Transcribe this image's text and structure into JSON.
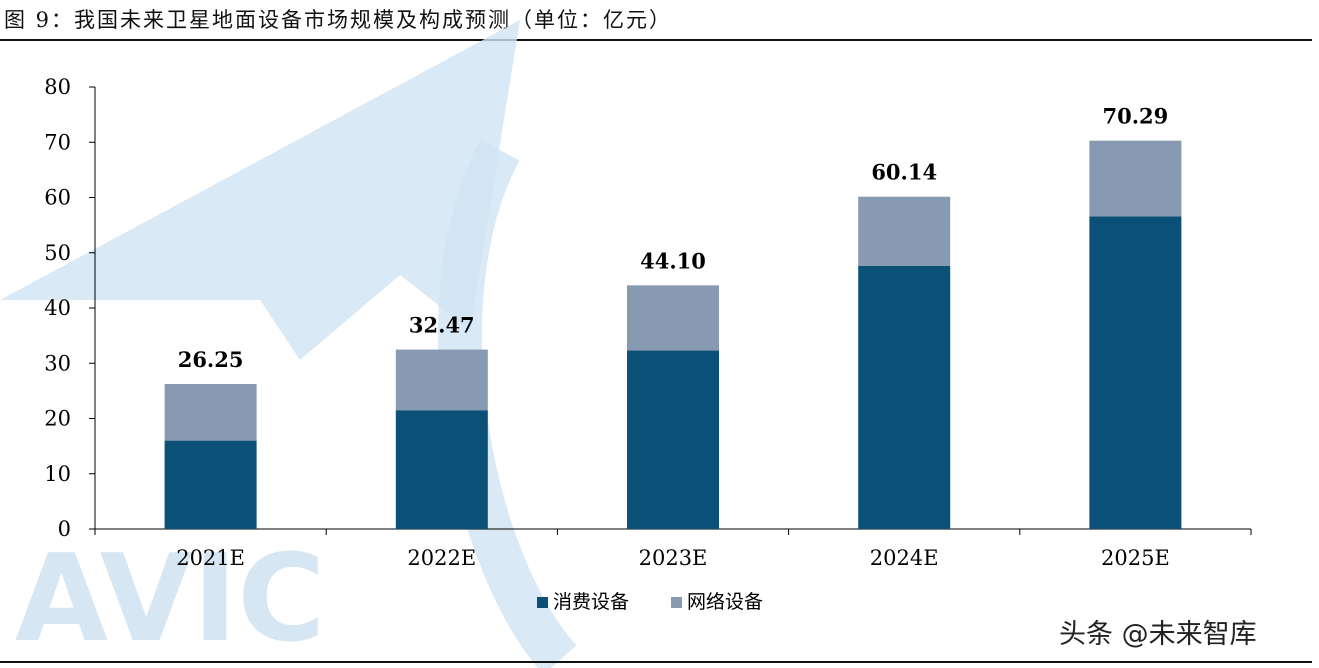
{
  "header": {
    "title": "图 9：我国未来卫星地面设备市场规模及构成预测（单位：亿元）"
  },
  "watermark": {
    "text": "AVIC",
    "color": "#cfe3f2"
  },
  "source": {
    "label": "头条 @未来智库"
  },
  "colors": {
    "consumer": "#0b5177",
    "network": "#8899b2",
    "axis": "#000000"
  },
  "chart_data": {
    "type": "bar",
    "stacked": true,
    "title": "",
    "xlabel": "",
    "ylabel": "",
    "ylim": [
      0,
      80
    ],
    "yticks": [
      0,
      10,
      20,
      30,
      40,
      50,
      60,
      70,
      80
    ],
    "categories": [
      "2021E",
      "2022E",
      "2023E",
      "2024E",
      "2025E"
    ],
    "series": [
      {
        "name": "消费设备",
        "values": [
          16.0,
          21.5,
          32.3,
          47.6,
          56.6
        ]
      },
      {
        "name": "网络设备",
        "values": [
          10.25,
          10.97,
          11.8,
          12.54,
          13.69
        ]
      }
    ],
    "totals": [
      "26.25",
      "32.47",
      "44.10",
      "60.14",
      "70.29"
    ],
    "legend_position": "bottom",
    "grid": false
  }
}
